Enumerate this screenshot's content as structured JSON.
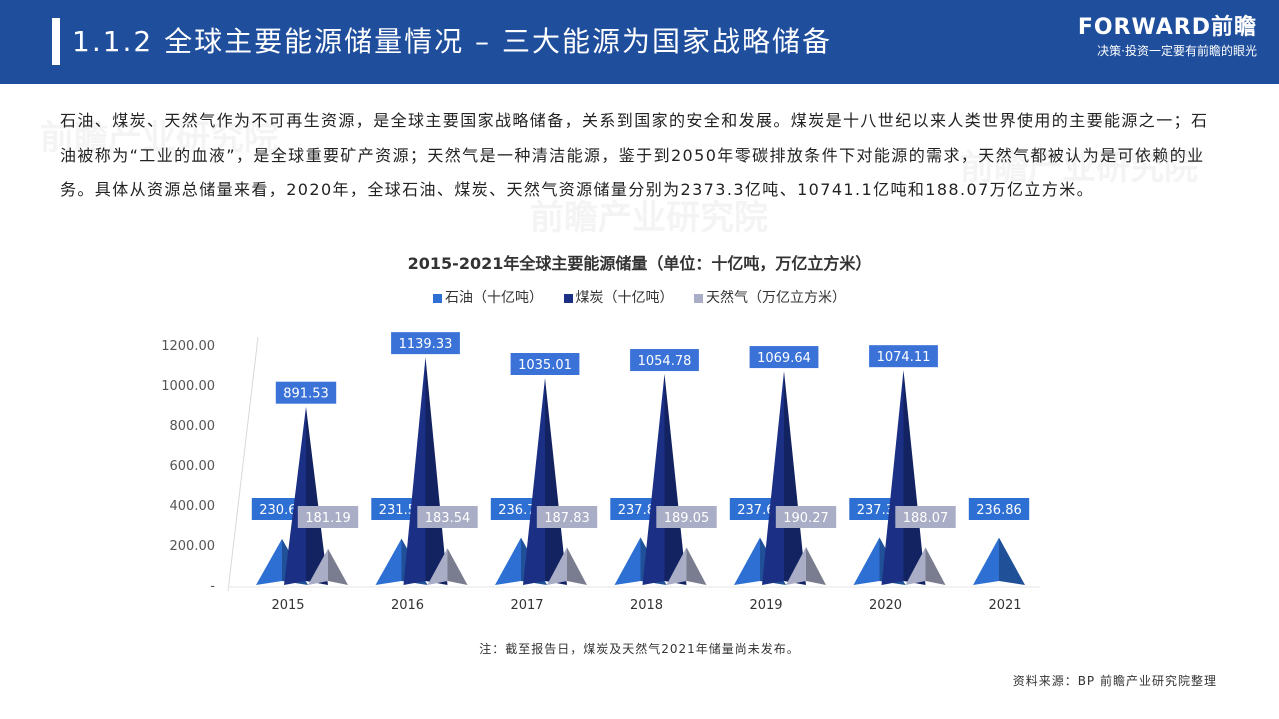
{
  "header": {
    "title": "1.1.2 全球主要能源储量情况 – 三大能源为国家战略储备",
    "logo_main": "FORWARD前瞻",
    "logo_sub": "决策·投资一定要有前瞻的眼光"
  },
  "intro_text": "石油、煤炭、天然气作为不可再生资源，是全球主要国家战略储备，关系到国家的安全和发展。煤炭是十八世纪以来人类世界使用的主要能源之一；石油被称为“工业的血液”，是全球重要矿产资源；天然气是一种清洁能源，鉴于到2050年零碳排放条件下对能源的需求，天然气都被认为是可依赖的业务。具体从资源总储量来看，2020年，全球石油、煤炭、天然气资源储量分别为2373.3亿吨、10741.1亿吨和188.07万亿立方米。",
  "note": "注：截至报告日，煤炭及天然气2021年储量尚未发布。",
  "source": "资料来源：BP 前瞻产业研究院整理",
  "watermark": "前瞻产业研究院",
  "chart_data": {
    "type": "bar",
    "title": "2015-2021年全球主要能源储量（单位：十亿吨，万亿立方米）",
    "categories": [
      "2015",
      "2016",
      "2017",
      "2018",
      "2019",
      "2020",
      "2021"
    ],
    "series": [
      {
        "name": "石油（十亿吨）",
        "color": "#2d6fd2",
        "values": [
          230.69,
          231.57,
          236.76,
          237.85,
          237.67,
          237.33,
          236.86
        ]
      },
      {
        "name": "煤炭（十亿吨）",
        "color": "#1b2f85",
        "values": [
          891.53,
          1139.33,
          1035.01,
          1054.78,
          1069.64,
          1074.11,
          null
        ]
      },
      {
        "name": "天然气（万亿立方米）",
        "color": "#a9adc6",
        "values": [
          181.19,
          183.54,
          187.83,
          189.05,
          190.27,
          188.07,
          null
        ]
      }
    ],
    "ylim": [
      0,
      1200
    ],
    "yticks": [
      0,
      200,
      400,
      600,
      800,
      1000,
      1200
    ],
    "ytick_labels": [
      "-",
      "200.00",
      "400.00",
      "600.00",
      "800.00",
      "1000.00",
      "1200.00"
    ],
    "grid": false,
    "legend_position": "top"
  }
}
